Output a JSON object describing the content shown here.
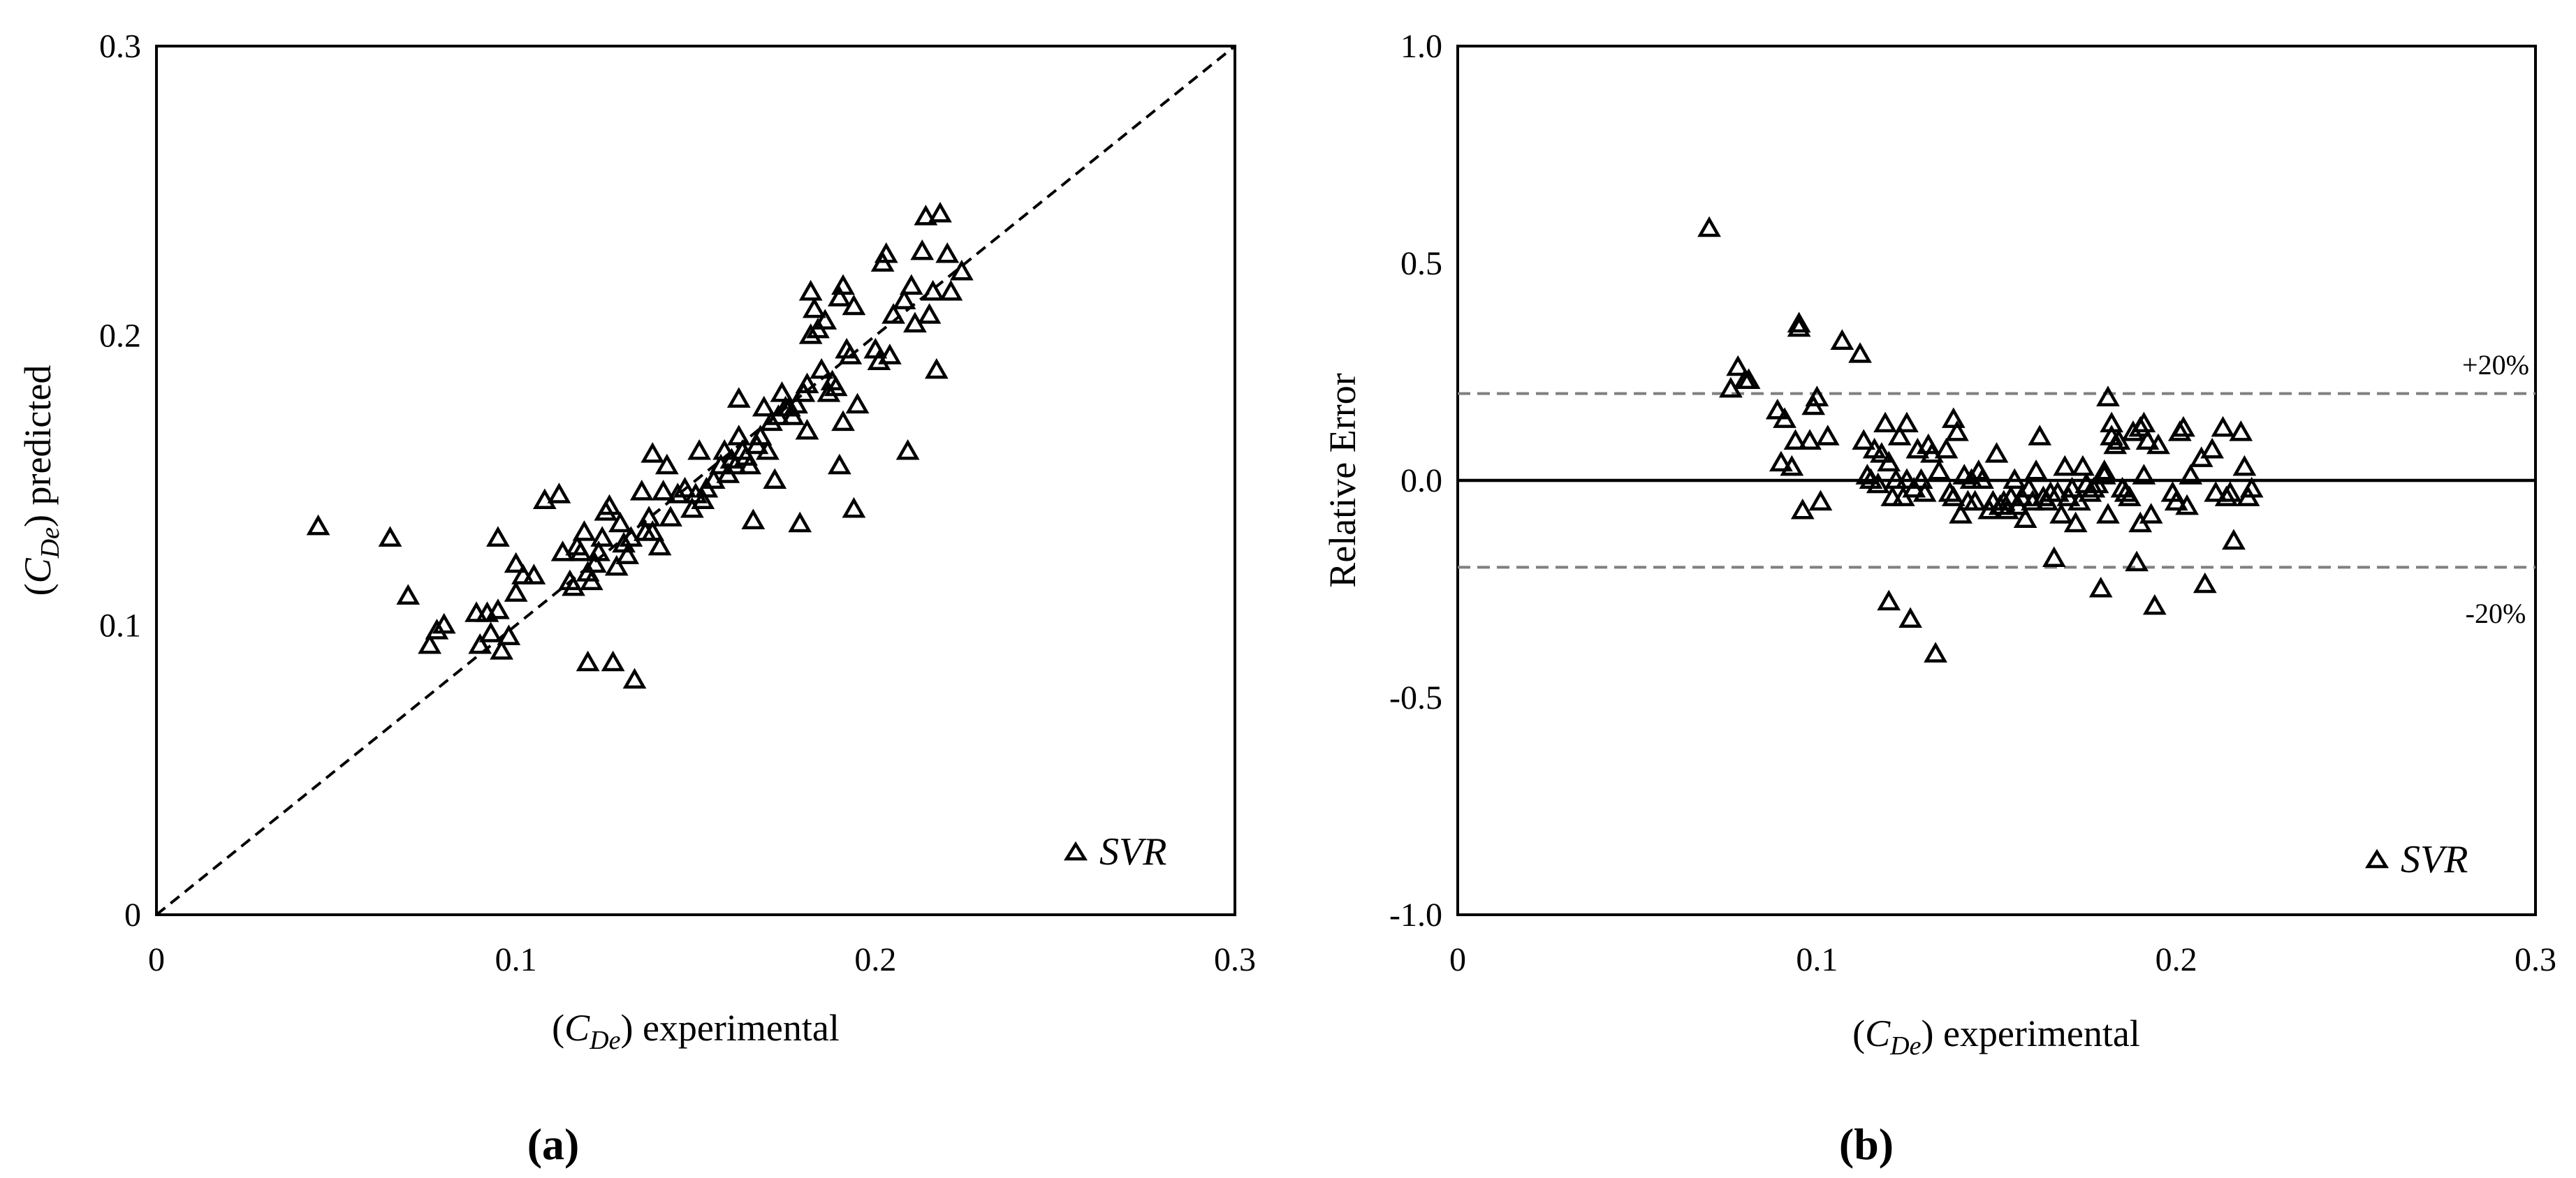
{
  "chart_data": [
    {
      "type": "scatter",
      "panel_label": "(a)",
      "xlabel": {
        "pre": "(",
        "var": "C",
        "sub": "De",
        "post": ") experimental"
      },
      "ylabel": {
        "pre": "(",
        "var": "C",
        "sub": "De",
        "post": ") predicted"
      },
      "xlim": [
        0,
        0.3
      ],
      "ylim": [
        0,
        0.3
      ],
      "xticks": [
        "0",
        "0.1",
        "0.2",
        "0.3"
      ],
      "yticks": [
        "0",
        "0.1",
        "0.2",
        "0.3"
      ],
      "reference_line": {
        "style": "dashed",
        "from": [
          0,
          0
        ],
        "to": [
          0.3,
          0.3
        ]
      },
      "legend": {
        "position": "bottom-right",
        "marker": "triangle"
      },
      "series": [
        {
          "name": "SVR",
          "marker": "triangle",
          "points": [
            [
              0.045,
              0.134
            ],
            [
              0.065,
              0.13
            ],
            [
              0.07,
              0.11
            ],
            [
              0.076,
              0.093
            ],
            [
              0.078,
              0.098
            ],
            [
              0.08,
              0.1
            ],
            [
              0.089,
              0.104
            ],
            [
              0.09,
              0.093
            ],
            [
              0.092,
              0.104
            ],
            [
              0.093,
              0.097
            ],
            [
              0.095,
              0.105
            ],
            [
              0.095,
              0.13
            ],
            [
              0.096,
              0.091
            ],
            [
              0.098,
              0.096
            ],
            [
              0.1,
              0.111
            ],
            [
              0.1,
              0.121
            ],
            [
              0.102,
              0.117
            ],
            [
              0.105,
              0.117
            ],
            [
              0.108,
              0.143
            ],
            [
              0.112,
              0.145
            ],
            [
              0.113,
              0.125
            ],
            [
              0.115,
              0.115
            ],
            [
              0.116,
              0.113
            ],
            [
              0.117,
              0.127
            ],
            [
              0.118,
              0.125
            ],
            [
              0.119,
              0.132
            ],
            [
              0.12,
              0.087
            ],
            [
              0.12,
              0.118
            ],
            [
              0.121,
              0.115
            ],
            [
              0.122,
              0.121
            ],
            [
              0.123,
              0.125
            ],
            [
              0.124,
              0.13
            ],
            [
              0.125,
              0.139
            ],
            [
              0.126,
              0.141
            ],
            [
              0.127,
              0.087
            ],
            [
              0.128,
              0.12
            ],
            [
              0.129,
              0.135
            ],
            [
              0.13,
              0.128
            ],
            [
              0.131,
              0.124
            ],
            [
              0.132,
              0.13
            ],
            [
              0.133,
              0.081
            ],
            [
              0.135,
              0.146
            ],
            [
              0.136,
              0.132
            ],
            [
              0.137,
              0.137
            ],
            [
              0.138,
              0.159
            ],
            [
              0.138,
              0.132
            ],
            [
              0.14,
              0.127
            ],
            [
              0.141,
              0.146
            ],
            [
              0.142,
              0.155
            ],
            [
              0.143,
              0.137
            ],
            [
              0.145,
              0.145
            ],
            [
              0.147,
              0.147
            ],
            [
              0.149,
              0.14
            ],
            [
              0.15,
              0.145
            ],
            [
              0.151,
              0.16
            ],
            [
              0.152,
              0.143
            ],
            [
              0.153,
              0.147
            ],
            [
              0.155,
              0.15
            ],
            [
              0.157,
              0.155
            ],
            [
              0.158,
              0.16
            ],
            [
              0.159,
              0.152
            ],
            [
              0.16,
              0.157
            ],
            [
              0.161,
              0.155
            ],
            [
              0.162,
              0.178
            ],
            [
              0.162,
              0.165
            ],
            [
              0.163,
              0.16
            ],
            [
              0.164,
              0.158
            ],
            [
              0.165,
              0.155
            ],
            [
              0.166,
              0.136
            ],
            [
              0.167,
              0.162
            ],
            [
              0.168,
              0.165
            ],
            [
              0.169,
              0.175
            ],
            [
              0.17,
              0.16
            ],
            [
              0.171,
              0.17
            ],
            [
              0.172,
              0.15
            ],
            [
              0.173,
              0.172
            ],
            [
              0.174,
              0.18
            ],
            [
              0.175,
              0.175
            ],
            [
              0.176,
              0.175
            ],
            [
              0.177,
              0.172
            ],
            [
              0.178,
              0.176
            ],
            [
              0.179,
              0.135
            ],
            [
              0.18,
              0.18
            ],
            [
              0.181,
              0.183
            ],
            [
              0.181,
              0.167
            ],
            [
              0.182,
              0.2
            ],
            [
              0.182,
              0.215
            ],
            [
              0.183,
              0.209
            ],
            [
              0.184,
              0.202
            ],
            [
              0.185,
              0.188
            ],
            [
              0.186,
              0.205
            ],
            [
              0.187,
              0.18
            ],
            [
              0.188,
              0.184
            ],
            [
              0.189,
              0.182
            ],
            [
              0.19,
              0.213
            ],
            [
              0.19,
              0.155
            ],
            [
              0.191,
              0.217
            ],
            [
              0.191,
              0.17
            ],
            [
              0.192,
              0.195
            ],
            [
              0.193,
              0.193
            ],
            [
              0.194,
              0.21
            ],
            [
              0.194,
              0.14
            ],
            [
              0.195,
              0.176
            ],
            [
              0.2,
              0.195
            ],
            [
              0.201,
              0.191
            ],
            [
              0.202,
              0.225
            ],
            [
              0.203,
              0.228
            ],
            [
              0.204,
              0.193
            ],
            [
              0.205,
              0.207
            ],
            [
              0.208,
              0.212
            ],
            [
              0.209,
              0.16
            ],
            [
              0.21,
              0.217
            ],
            [
              0.211,
              0.204
            ],
            [
              0.213,
              0.229
            ],
            [
              0.214,
              0.241
            ],
            [
              0.215,
              0.207
            ],
            [
              0.216,
              0.215
            ],
            [
              0.217,
              0.188
            ],
            [
              0.218,
              0.242
            ],
            [
              0.22,
              0.228
            ],
            [
              0.221,
              0.215
            ],
            [
              0.224,
              0.222
            ]
          ]
        }
      ]
    },
    {
      "type": "scatter",
      "panel_label": "(b)",
      "xlabel": {
        "pre": "(",
        "var": "C",
        "sub": "De",
        "post": ") experimental"
      },
      "ylabel": {
        "text": "Relative Error"
      },
      "xlim": [
        0,
        0.3
      ],
      "ylim": [
        -1.0,
        1.0
      ],
      "xticks": [
        "0",
        "0.1",
        "0.2",
        "0.3"
      ],
      "yticks": [
        "-1.0",
        "-0.5",
        "0.0",
        "0.5",
        "1.0"
      ],
      "reference_lines": [
        {
          "y": 0.0,
          "style": "solid"
        },
        {
          "y": 0.2,
          "style": "dashed",
          "label": "+20%"
        },
        {
          "y": -0.2,
          "style": "dashed",
          "label": "-20%"
        }
      ],
      "legend": {
        "position": "bottom-right",
        "marker": "triangle"
      },
      "series": [
        {
          "name": "SVR",
          "marker": "triangle",
          "points": [
            [
              0.07,
              0.58
            ],
            [
              0.076,
              0.21
            ],
            [
              0.078,
              0.26
            ],
            [
              0.08,
              0.23
            ],
            [
              0.081,
              0.23
            ],
            [
              0.089,
              0.16
            ],
            [
              0.09,
              0.04
            ],
            [
              0.091,
              0.14
            ],
            [
              0.093,
              0.03
            ],
            [
              0.094,
              0.09
            ],
            [
              0.095,
              0.35
            ],
            [
              0.095,
              0.36
            ],
            [
              0.096,
              -0.07
            ],
            [
              0.098,
              0.09
            ],
            [
              0.099,
              0.17
            ],
            [
              0.1,
              0.19
            ],
            [
              0.101,
              -0.05
            ],
            [
              0.103,
              0.1
            ],
            [
              0.107,
              0.32
            ],
            [
              0.112,
              0.29
            ],
            [
              0.113,
              0.09
            ],
            [
              0.114,
              0.01
            ],
            [
              0.115,
              0.0
            ],
            [
              0.116,
              0.07
            ],
            [
              0.117,
              -0.01
            ],
            [
              0.118,
              0.06
            ],
            [
              0.119,
              0.13
            ],
            [
              0.12,
              -0.28
            ],
            [
              0.12,
              0.04
            ],
            [
              0.121,
              -0.04
            ],
            [
              0.122,
              0.0
            ],
            [
              0.123,
              0.1
            ],
            [
              0.124,
              -0.04
            ],
            [
              0.125,
              0.13
            ],
            [
              0.125,
              0.0
            ],
            [
              0.126,
              -0.32
            ],
            [
              0.127,
              -0.02
            ],
            [
              0.128,
              0.07
            ],
            [
              0.129,
              0.0
            ],
            [
              0.13,
              -0.03
            ],
            [
              0.131,
              0.08
            ],
            [
              0.132,
              0.06
            ],
            [
              0.133,
              -0.4
            ],
            [
              0.134,
              0.02
            ],
            [
              0.136,
              0.07
            ],
            [
              0.137,
              -0.03
            ],
            [
              0.138,
              0.14
            ],
            [
              0.138,
              -0.04
            ],
            [
              0.139,
              0.11
            ],
            [
              0.14,
              -0.08
            ],
            [
              0.141,
              0.01
            ],
            [
              0.142,
              -0.05
            ],
            [
              0.143,
              0.0
            ],
            [
              0.144,
              -0.05
            ],
            [
              0.145,
              0.02
            ],
            [
              0.146,
              0.0
            ],
            [
              0.148,
              -0.07
            ],
            [
              0.149,
              -0.05
            ],
            [
              0.15,
              0.06
            ],
            [
              0.151,
              -0.06
            ],
            [
              0.152,
              -0.05
            ],
            [
              0.153,
              -0.07
            ],
            [
              0.154,
              -0.04
            ],
            [
              0.155,
              0.0
            ],
            [
              0.156,
              -0.06
            ],
            [
              0.157,
              -0.04
            ],
            [
              0.158,
              -0.09
            ],
            [
              0.159,
              -0.02
            ],
            [
              0.16,
              -0.05
            ],
            [
              0.161,
              0.02
            ],
            [
              0.162,
              0.1
            ],
            [
              0.163,
              -0.04
            ],
            [
              0.164,
              -0.05
            ],
            [
              0.165,
              -0.03
            ],
            [
              0.166,
              -0.18
            ],
            [
              0.167,
              -0.03
            ],
            [
              0.168,
              -0.08
            ],
            [
              0.169,
              0.03
            ],
            [
              0.17,
              -0.04
            ],
            [
              0.171,
              -0.02
            ],
            [
              0.172,
              -0.1
            ],
            [
              0.173,
              -0.05
            ],
            [
              0.174,
              0.03
            ],
            [
              0.175,
              -0.01
            ],
            [
              0.176,
              -0.03
            ],
            [
              0.177,
              -0.02
            ],
            [
              0.178,
              -0.01
            ],
            [
              0.179,
              -0.25
            ],
            [
              0.18,
              0.01
            ],
            [
              0.18,
              0.02
            ],
            [
              0.181,
              0.19
            ],
            [
              0.181,
              -0.08
            ],
            [
              0.182,
              0.13
            ],
            [
              0.182,
              0.1
            ],
            [
              0.183,
              0.08
            ],
            [
              0.184,
              0.09
            ],
            [
              0.185,
              -0.02
            ],
            [
              0.186,
              -0.03
            ],
            [
              0.187,
              -0.04
            ],
            [
              0.188,
              0.11
            ],
            [
              0.189,
              -0.19
            ],
            [
              0.19,
              0.12
            ],
            [
              0.19,
              -0.1
            ],
            [
              0.191,
              0.13
            ],
            [
              0.191,
              0.01
            ],
            [
              0.192,
              0.09
            ],
            [
              0.193,
              -0.08
            ],
            [
              0.194,
              -0.29
            ],
            [
              0.195,
              0.08
            ],
            [
              0.199,
              -0.03
            ],
            [
              0.2,
              -0.05
            ],
            [
              0.201,
              0.11
            ],
            [
              0.202,
              0.12
            ],
            [
              0.203,
              -0.06
            ],
            [
              0.204,
              0.01
            ],
            [
              0.207,
              0.05
            ],
            [
              0.208,
              -0.24
            ],
            [
              0.21,
              0.07
            ],
            [
              0.211,
              -0.03
            ],
            [
              0.213,
              0.12
            ],
            [
              0.214,
              -0.04
            ],
            [
              0.215,
              -0.03
            ],
            [
              0.216,
              -0.14
            ],
            [
              0.218,
              0.11
            ],
            [
              0.219,
              0.03
            ],
            [
              0.22,
              -0.04
            ],
            [
              0.221,
              -0.02
            ]
          ]
        }
      ]
    }
  ]
}
